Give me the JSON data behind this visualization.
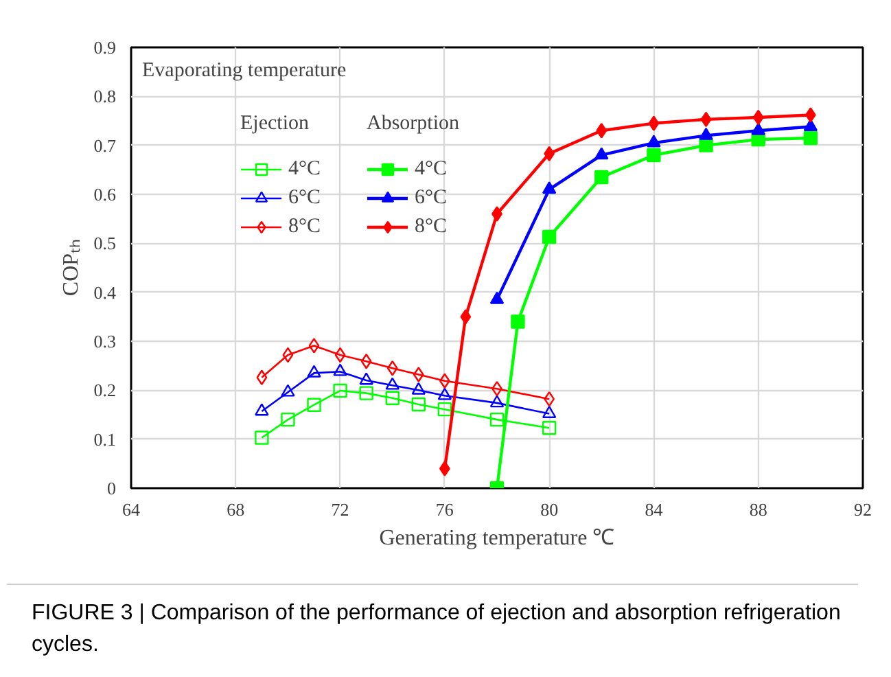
{
  "chart_data": {
    "type": "line",
    "xlabel": "Generating temperature ℃",
    "ylabel": "COPₜₕ",
    "legend_title": "Evaporating temperature",
    "xlim": [
      64,
      92
    ],
    "ylim": [
      0,
      0.9
    ],
    "xticks": [
      64,
      68,
      72,
      76,
      80,
      84,
      88,
      92
    ],
    "yticks": [
      0,
      0.1,
      0.2,
      0.3,
      0.4,
      0.5,
      0.6,
      0.7,
      0.8,
      0.9
    ],
    "grid": true,
    "legend": "top left",
    "annotations": [
      "Ejection",
      "Absorption",
      "FIGURE 3 | Comparison of the performance of ejection and absorption refrigeration cycles."
    ],
    "series": [
      {
        "name": "4°C",
        "color": "#00ff00",
        "marker": "square",
        "x": [
          69,
          70,
          71,
          72,
          73,
          74,
          75,
          76,
          78,
          80
        ],
        "values": [
          0.103,
          0.14,
          0.17,
          0.199,
          0.194,
          0.184,
          0.171,
          0.161,
          0.14,
          0.123
        ]
      },
      {
        "name": "6°C",
        "color": "#0000ff",
        "marker": "triangle",
        "x": [
          69,
          70,
          71,
          72,
          73,
          74,
          75,
          76,
          78,
          80
        ],
        "values": [
          0.157,
          0.196,
          0.235,
          0.238,
          0.22,
          0.21,
          0.2,
          0.189,
          0.174,
          0.152
        ]
      },
      {
        "name": "8°C",
        "color": "#ff0000",
        "marker": "diamond",
        "x": [
          69,
          70,
          71,
          72,
          73,
          74,
          75,
          76,
          78,
          80
        ],
        "values": [
          0.226,
          0.272,
          0.291,
          0.272,
          0.259,
          0.245,
          0.232,
          0.219,
          0.203,
          0.182
        ]
      },
      {
        "name": "4°C",
        "color": "#00ff00",
        "marker": "square",
        "x": [
          78,
          78.8,
          80,
          82,
          84,
          86,
          88,
          90
        ],
        "values": [
          0,
          0.34,
          0.513,
          0.635,
          0.68,
          0.7,
          0.712,
          0.715
        ]
      },
      {
        "name": "6°C",
        "color": "#0000ff",
        "marker": "triangle",
        "x": [
          78,
          80,
          82,
          84,
          86,
          88,
          90
        ],
        "values": [
          0.385,
          0.61,
          0.68,
          0.705,
          0.72,
          0.73,
          0.738
        ]
      },
      {
        "name": "8°C",
        "color": "#ff0000",
        "marker": "diamond",
        "x": [
          76,
          76.8,
          78,
          80,
          82,
          84,
          86,
          88,
          90
        ],
        "values": [
          0.04,
          0.35,
          0.56,
          0.683,
          0.73,
          0.745,
          0.753,
          0.757,
          0.762
        ]
      }
    ]
  }
}
